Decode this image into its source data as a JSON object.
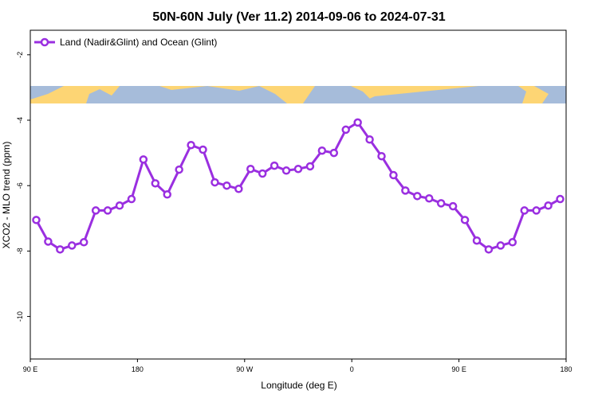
{
  "chart_data": {
    "type": "line",
    "title": "50N-60N July (Ver 11.2)   2014-09-06 to 2024-07-31",
    "x_label": "Longitude (deg E)",
    "y_label": "XCO2 - MLO trend (ppm)",
    "xlim": [
      90,
      540
    ],
    "ylim": [
      -11.3,
      -1.25
    ],
    "xticks": [
      {
        "value": 90,
        "label": "90 E"
      },
      {
        "value": 180,
        "label": "180"
      },
      {
        "value": 270,
        "label": "90 W"
      },
      {
        "value": 360,
        "label": "0"
      },
      {
        "value": 450,
        "label": "90 E"
      },
      {
        "value": 540,
        "label": "180"
      }
    ],
    "yticks": [
      -2,
      -4,
      -6,
      -8,
      -10
    ],
    "legend": "top-left",
    "x": [
      95,
      105,
      115,
      125,
      135,
      145,
      155,
      165,
      175,
      185,
      195,
      205,
      215,
      225,
      235,
      245,
      255,
      265,
      275,
      285,
      295,
      305,
      315,
      325,
      335,
      345,
      355,
      365,
      375,
      385,
      395,
      405,
      415,
      425,
      435,
      445,
      455,
      465,
      475,
      485,
      495,
      505,
      515,
      525,
      535
    ],
    "series": [
      {
        "name": "Land (Nadir&Glint) and Ocean (Glint)",
        "color": "#9a2fe0",
        "values": [
          -7.05,
          -7.71,
          -7.95,
          -7.83,
          -7.73,
          -6.76,
          -6.76,
          -6.61,
          -6.41,
          -5.2,
          -5.93,
          -6.27,
          -5.51,
          -4.76,
          -4.9,
          -5.9,
          -6.0,
          -6.1,
          -5.49,
          -5.63,
          -5.39,
          -5.54,
          -5.49,
          -5.41,
          -4.93,
          -5.0,
          -4.29,
          -4.07,
          -4.59,
          -5.1,
          -5.68,
          -6.15,
          -6.32,
          -6.39,
          -6.54,
          -6.63,
          -7.05,
          -7.68,
          -7.95,
          -7.83,
          -7.73,
          -6.76,
          -6.76,
          -6.61,
          -6.41
        ]
      }
    ]
  }
}
